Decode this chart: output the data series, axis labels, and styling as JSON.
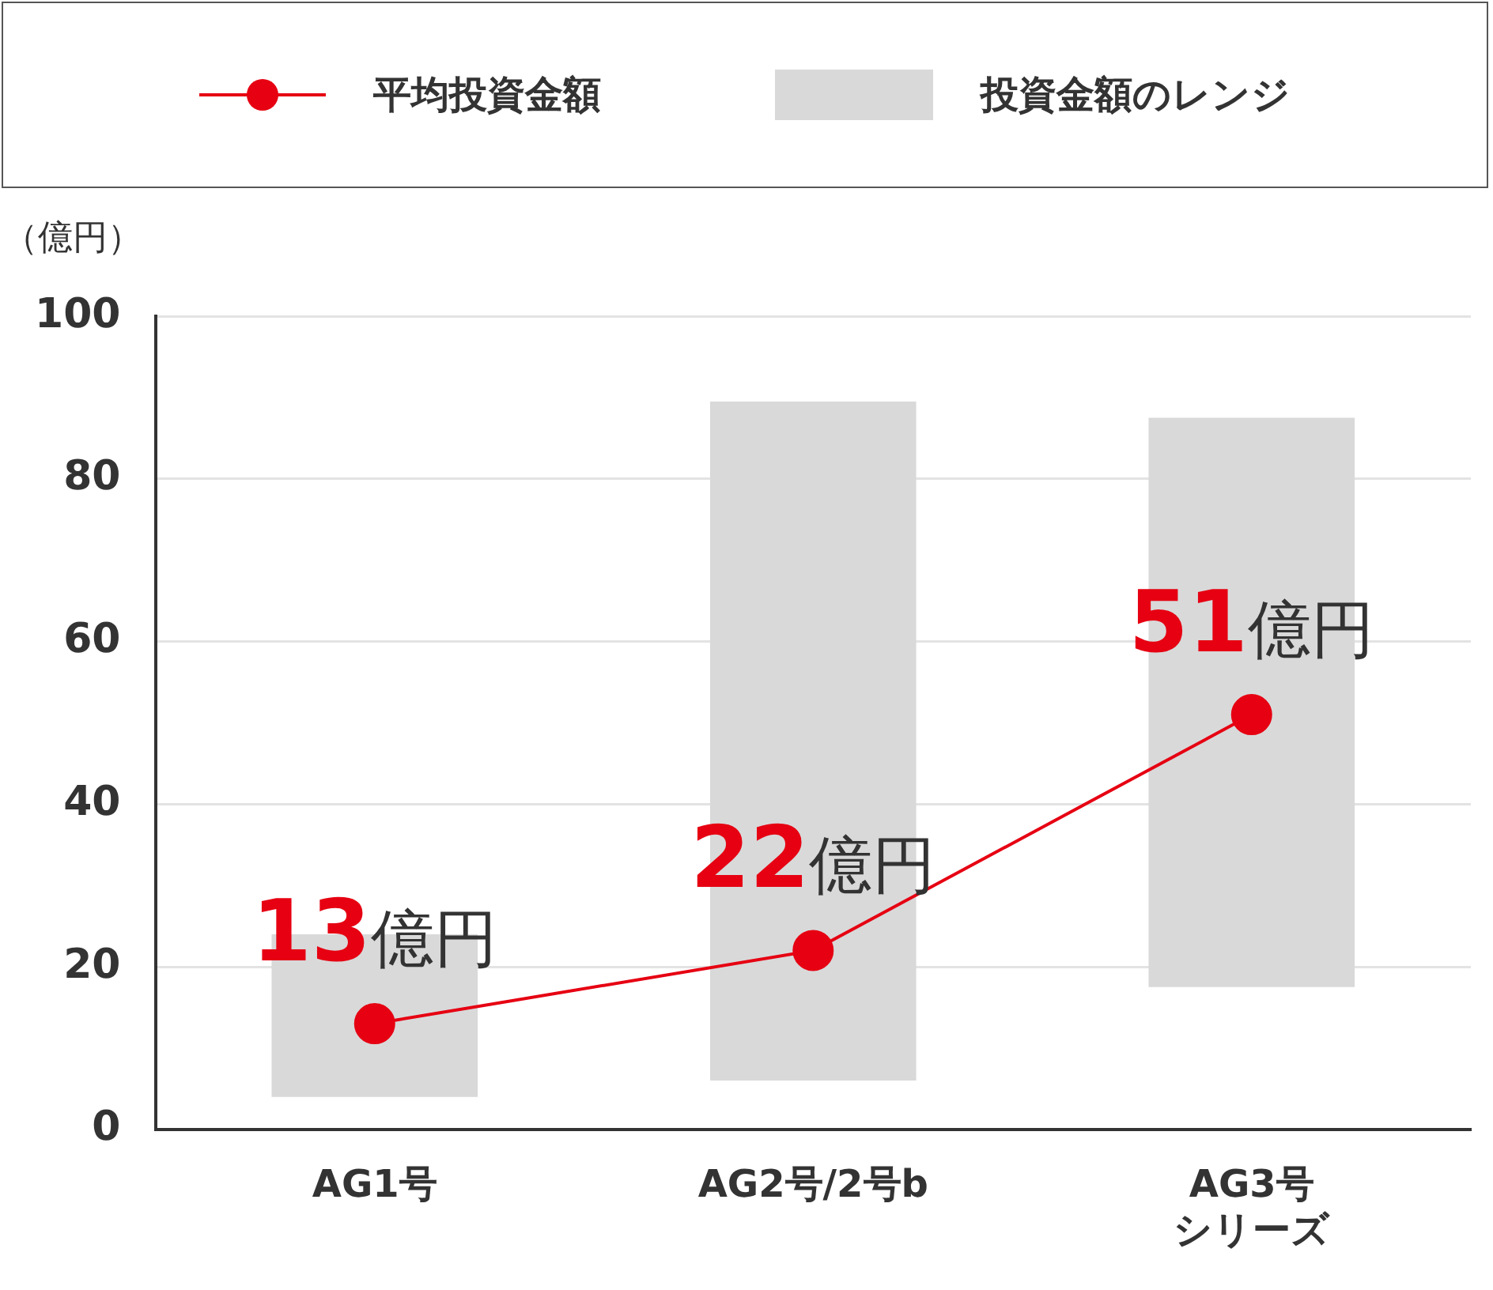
{
  "chart_data": {
    "type": "bar",
    "ylabel": "（億円）",
    "categories": [
      "AG1号",
      "AG2号/2号b",
      "AG3号シリーズ"
    ],
    "series": [
      {
        "name": "平均投資金額",
        "type": "line",
        "color": "#e60012",
        "values": [
          13,
          22,
          51
        ],
        "value_labels": [
          "13億円",
          "22億円",
          "51億円"
        ]
      },
      {
        "name": "投資金額のレンジ",
        "color": "#d9d9d9",
        "base": [
          4,
          6,
          17.5
        ],
        "values": [
          20,
          83.5,
          70
        ]
      }
    ],
    "ylim": [
      0,
      100
    ],
    "yticks": [
      0,
      20,
      40,
      60,
      80,
      100
    ],
    "grid": "y",
    "legend": "top",
    "marker": "circle",
    "line_style": "solid"
  }
}
